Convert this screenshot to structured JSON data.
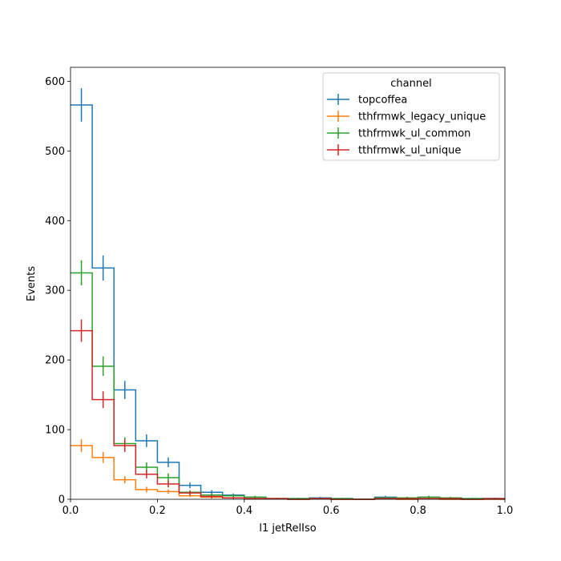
{
  "chart_data": {
    "type": "histogram",
    "xlabel": "l1 jetRelIso",
    "ylabel": "Events",
    "xlim": [
      0,
      1.0
    ],
    "ylim": [
      0,
      620
    ],
    "x_ticks": [
      "0.0",
      "0.2",
      "0.4",
      "0.6",
      "0.8",
      "1.0"
    ],
    "y_ticks": [
      "0",
      "100",
      "200",
      "300",
      "400",
      "500",
      "600"
    ],
    "bin_edges": [
      0,
      0.05,
      0.1,
      0.15,
      0.2,
      0.25,
      0.3,
      0.35,
      0.4,
      0.45,
      0.5,
      0.55,
      0.6,
      0.65,
      0.7,
      0.75,
      0.8,
      0.85,
      0.9,
      0.95,
      1.0
    ],
    "legend": {
      "title": "channel",
      "position": "upper right"
    },
    "series": [
      {
        "name": "topcoffea",
        "color": "#1f77b4",
        "values": [
          566,
          332,
          157,
          84,
          53,
          20,
          10,
          6,
          3,
          1,
          1,
          2,
          1,
          0,
          3,
          2,
          3,
          2,
          1,
          1
        ],
        "errors": [
          24,
          18,
          13,
          9,
          7,
          4,
          3,
          2.5,
          2,
          1,
          1,
          1.5,
          1,
          0,
          2,
          1.5,
          2,
          1.5,
          1,
          1
        ]
      },
      {
        "name": "tthfrmwk_legacy_unique",
        "color": "#ff7f0e",
        "values": [
          77,
          60,
          28,
          14,
          11,
          5,
          3,
          2,
          1,
          1,
          0,
          1,
          0,
          0,
          1,
          0,
          1,
          0,
          0,
          0
        ],
        "errors": [
          9,
          8,
          5,
          4,
          3,
          2,
          2,
          1.5,
          1,
          1,
          0,
          1,
          0,
          0,
          1,
          0,
          1,
          0,
          0,
          0
        ]
      },
      {
        "name": "tthfrmwk_ul_common",
        "color": "#2ca02c",
        "values": [
          325,
          191,
          80,
          46,
          31,
          10,
          6,
          5,
          3,
          1,
          1,
          1,
          1,
          0,
          2,
          2,
          3,
          2,
          1,
          1
        ],
        "errors": [
          18,
          14,
          9,
          7,
          6,
          3,
          2.5,
          2,
          2,
          1,
          1,
          1,
          1,
          0,
          1.5,
          1.5,
          2,
          1.5,
          1,
          1
        ]
      },
      {
        "name": "tthfrmwk_ul_unique",
        "color": "#d62728",
        "values": [
          242,
          143,
          77,
          36,
          22,
          9,
          4,
          2,
          1,
          1,
          0,
          1,
          0,
          0,
          1,
          1,
          1,
          1,
          0,
          1
        ],
        "errors": [
          16,
          12,
          9,
          6,
          5,
          3,
          2,
          1.5,
          1,
          1,
          0,
          1,
          0,
          0,
          1,
          1,
          1,
          1,
          0,
          1
        ]
      }
    ]
  }
}
